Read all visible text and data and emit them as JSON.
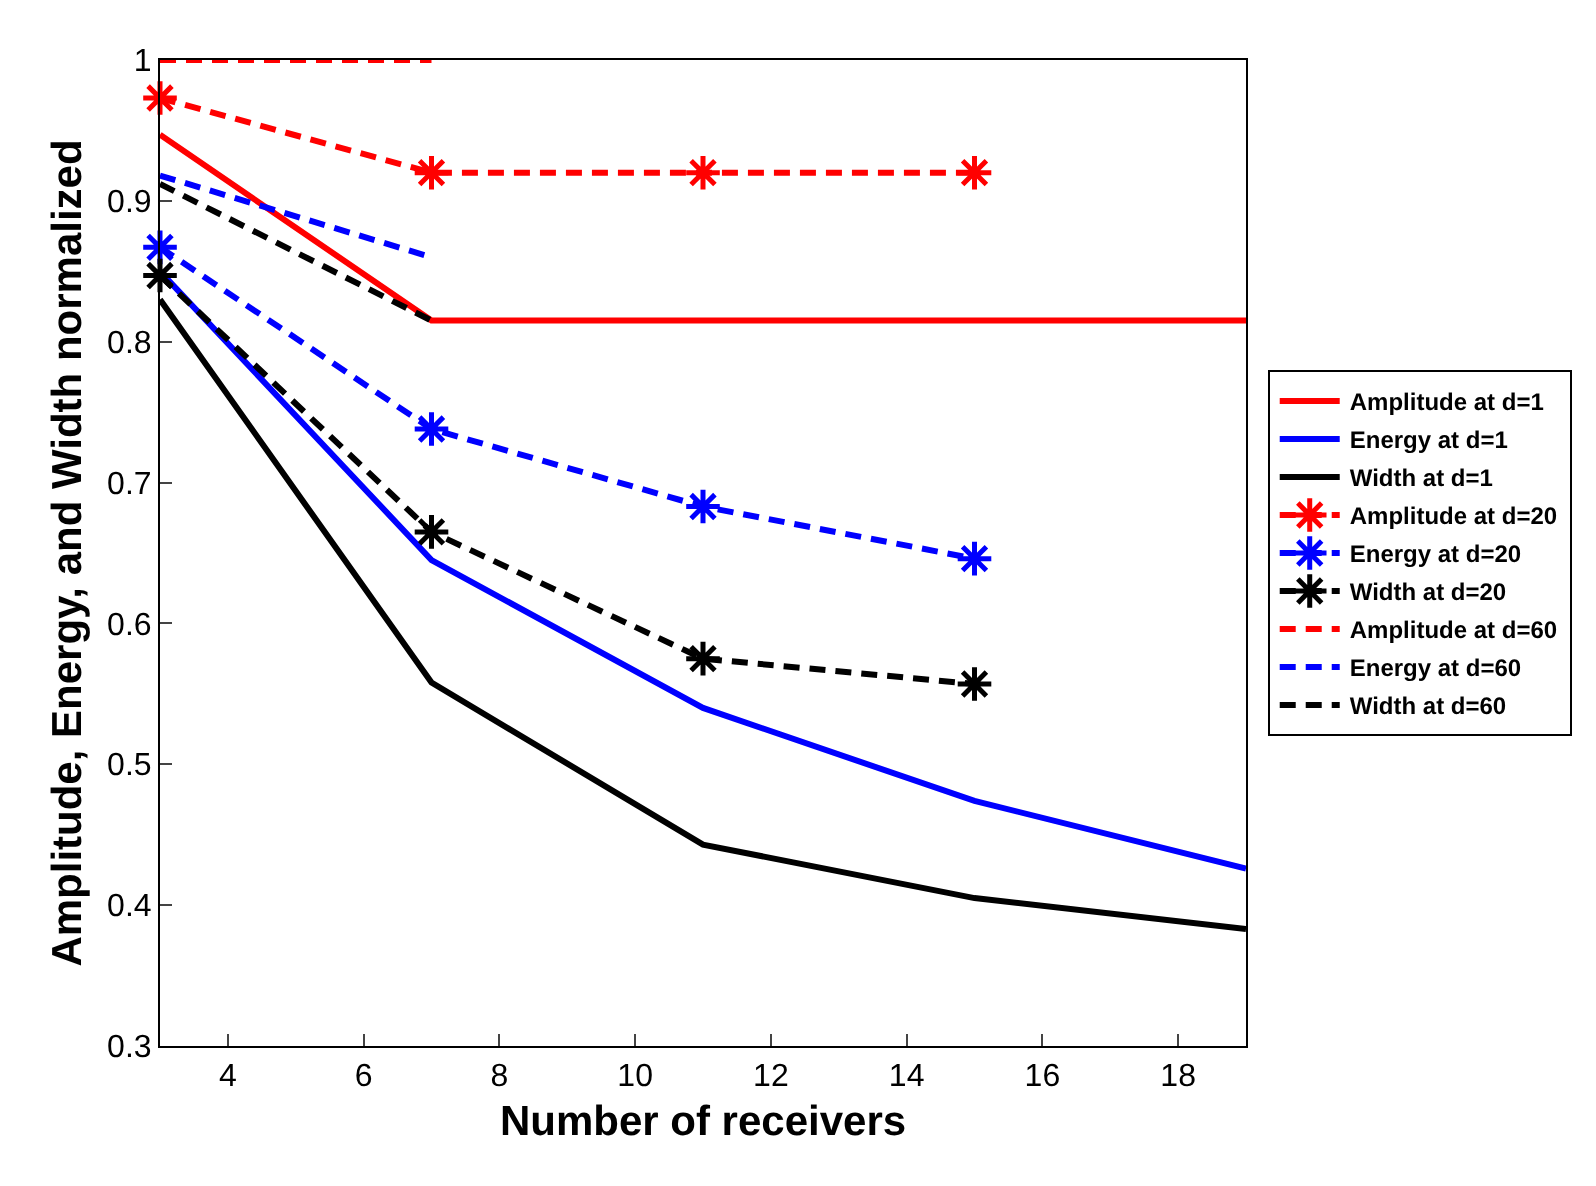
{
  "chart_data": {
    "type": "line",
    "xlabel": "Number of receivers",
    "ylabel": "Amplitude, Energy, and Width normalized",
    "x": [
      3,
      7,
      11,
      15,
      19
    ],
    "xlim": [
      3,
      19
    ],
    "xticks": [
      4,
      6,
      8,
      10,
      12,
      14,
      16,
      18
    ],
    "ylim": [
      0.3,
      1
    ],
    "yticks": [
      0.3,
      0.4,
      0.5,
      0.6,
      0.7,
      0.8,
      0.9,
      1
    ],
    "grid": false,
    "legend": "right",
    "marker": "none",
    "line_style": "solid",
    "series": [
      {
        "name": "Amplitude at d=1",
        "color": "#ff0000",
        "values": [
          0.947,
          0.815,
          0.815,
          0.815,
          0.815
        ]
      },
      {
        "name": "Energy at d=1",
        "color": "#0000ff",
        "values": [
          0.85,
          0.645,
          0.54,
          0.474,
          0.426
        ]
      },
      {
        "name": "Width at d=1",
        "color": "#000000",
        "values": [
          0.83,
          0.558,
          0.443,
          0.405,
          0.383
        ]
      },
      {
        "name": "Amplitude at d=20",
        "color": "#ff0000",
        "values": [
          0.973,
          0.92,
          0.92,
          0.92,
          null
        ],
        "marker": "cross",
        "line_style": "dashed"
      },
      {
        "name": "Energy at d=20",
        "color": "#0000ff",
        "values": [
          0.867,
          0.738,
          0.683,
          0.646,
          null
        ],
        "marker": "cross",
        "line_style": "dashed"
      },
      {
        "name": "Width at d=20",
        "color": "#000000",
        "values": [
          0.847,
          0.665,
          0.575,
          0.557,
          null
        ],
        "marker": "cross",
        "line_style": "dashed"
      },
      {
        "name": "Amplitude at d=60",
        "color": "#ff0000",
        "values": [
          1,
          1,
          null,
          null,
          null
        ],
        "line_style": "dashed"
      },
      {
        "name": "Energy at d=60",
        "color": "#0000ff",
        "values": [
          0.918,
          0.86,
          null,
          null,
          null
        ],
        "line_style": "dashed"
      },
      {
        "name": "Width at d=60",
        "color": "#000000",
        "values": [
          0.912,
          0.815,
          null,
          null,
          null
        ],
        "line_style": "dashed"
      }
    ]
  }
}
